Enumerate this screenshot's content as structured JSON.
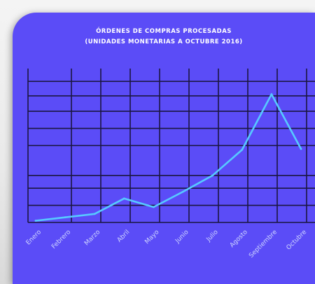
{
  "chart_data": {
    "type": "line",
    "title": "ÓRDENES DE COMPRAS PROCESADAS",
    "subtitle": "(UNIDADES MONETARIAS A OCTUBRE 2016)",
    "categories": [
      "Enero",
      "Febrero",
      "Marzo",
      "Abril",
      "Mayo",
      "Junio",
      "Julio",
      "Agosto",
      "Septiembre",
      "Octubre"
    ],
    "series": [
      {
        "values": [
          2,
          6,
          10,
          28,
          18,
          36,
          55,
          85,
          150,
          86
        ]
      }
    ],
    "ylim": [
      0,
      180
    ],
    "grid": true,
    "legend": "none",
    "colors": {
      "background": "#5b4cf7",
      "line": "#57c9ff",
      "grid": "#1b1640"
    }
  }
}
